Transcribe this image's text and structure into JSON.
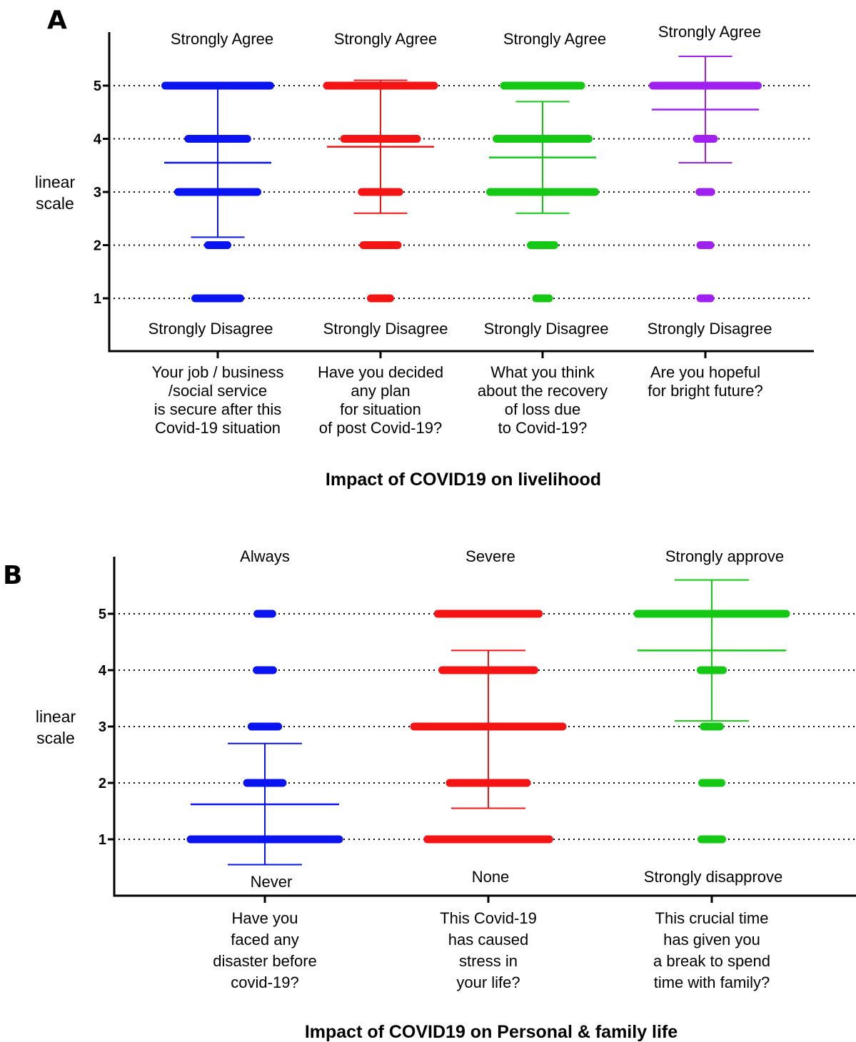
{
  "chart_data": [
    {
      "type": "scatter",
      "panel": "A",
      "title": "Impact of COVID19 on livelihood",
      "ylabel": "linear\nscale",
      "yticks": [
        1,
        2,
        3,
        4,
        5
      ],
      "ylim": [
        0.0,
        6.0
      ],
      "grid": "dotted horizontal lines at each tick",
      "items": [
        {
          "question": "Your job / business\n/social service\nis secure after this\nCovid-19 situation",
          "top_label": "Strongly Agree",
          "bottom_label": "Strongly Disagree",
          "color": "#0a14f0",
          "mean": 3.55,
          "sd_lower": 2.15,
          "sd_upper": 5.0,
          "response_spread": {
            "1": 0.42,
            "2": 0.18,
            "3": 0.74,
            "4": 0.55,
            "5": 0.98
          }
        },
        {
          "question": "Have you decided\nany plan\nfor situation\nof post Covid-19?",
          "top_label": "Strongly Agree",
          "bottom_label": "Strongly Disagree",
          "color": "#f51414",
          "mean": 3.85,
          "sd_lower": 2.6,
          "sd_upper": 5.1,
          "response_spread": {
            "1": 0.18,
            "2": 0.32,
            "3": 0.35,
            "4": 0.68,
            "5": 1.0
          }
        },
        {
          "question": "What you think\nabout the recovery\nof loss due\nto Covid-19?",
          "top_label": "Strongly Agree",
          "bottom_label": "Strongly Disagree",
          "color": "#14c814",
          "mean": 3.65,
          "sd_lower": 2.6,
          "sd_upper": 4.7,
          "response_spread": {
            "1": 0.12,
            "2": 0.22,
            "3": 0.98,
            "4": 0.86,
            "5": 0.72
          }
        },
        {
          "question": "Are you hopeful\nfor bright future?",
          "top_label": "Strongly Agree",
          "bottom_label": "Strongly Disagree",
          "color": "#a020f0",
          "mean": 4.55,
          "sd_lower": 3.55,
          "sd_upper": 5.55,
          "response_spread": {
            "1": 0.09,
            "2": 0.09,
            "3": 0.11,
            "4": 0.16,
            "5": 0.98
          }
        }
      ]
    },
    {
      "type": "scatter",
      "panel": "B",
      "title": "Impact of COVID19 on Personal & family life",
      "ylabel": "linear\nscale",
      "yticks": [
        1,
        2,
        3,
        4,
        5
      ],
      "ylim": [
        0.0,
        6.0
      ],
      "grid": "dotted horizontal lines at each tick",
      "items": [
        {
          "question": "Have you\nfaced any\ndisaster before\ncovid-19?",
          "top_label": "Always",
          "bottom_label": "Never",
          "color": "#0a14f0",
          "mean": 1.62,
          "sd_lower": 0.55,
          "sd_upper": 2.7,
          "response_spread": {
            "1": 1.0,
            "2": 0.24,
            "3": 0.18,
            "4": 0.11,
            "5": 0.1
          }
        },
        {
          "question": "This Covid-19\nhas caused\nstress in\nyour life?",
          "top_label": "Severe",
          "bottom_label": "None",
          "color": "#f51414",
          "mean": 3.0,
          "sd_lower": 1.55,
          "sd_upper": 4.35,
          "response_spread": {
            "1": 0.82,
            "2": 0.52,
            "3": 1.0,
            "4": 0.62,
            "5": 0.68
          }
        },
        {
          "question": "This crucial time\nhas given you\na break to spend\ntime with family?",
          "top_label": "Strongly approve",
          "bottom_label": "Strongly disapprove",
          "color": "#14c814",
          "mean": 4.35,
          "sd_lower": 3.1,
          "sd_upper": 5.6,
          "response_spread": {
            "1": 0.14,
            "2": 0.13,
            "3": 0.11,
            "4": 0.15,
            "5": 1.0
          }
        }
      ]
    }
  ]
}
